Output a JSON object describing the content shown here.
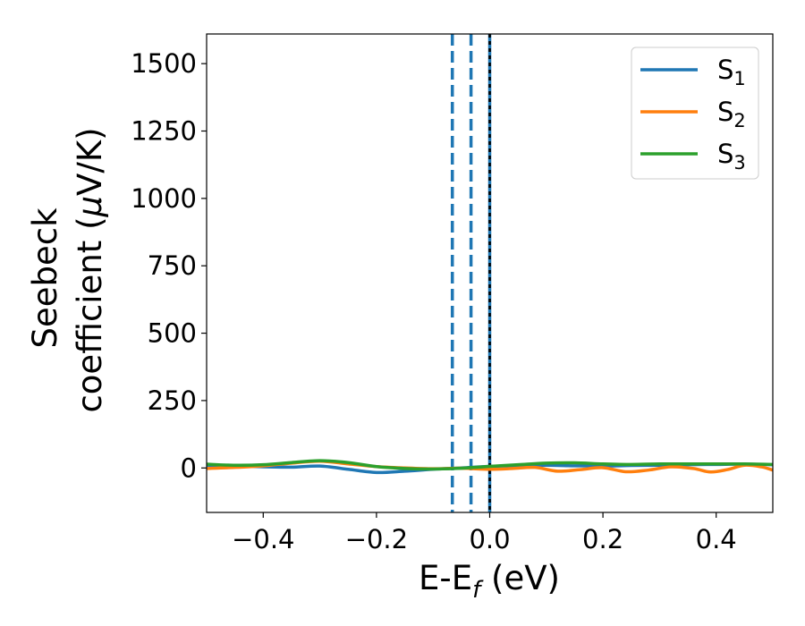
{
  "chart_data": {
    "type": "line",
    "xlabel": {
      "main": "E-E",
      "sub": "f",
      "tail": " (eV)"
    },
    "ylabel": {
      "line1": "Seebeck",
      "line2": "coefficient  (",
      "mu": "μ",
      "tail": "V/K)"
    },
    "xlim": [
      -0.5,
      0.5
    ],
    "ylim": [
      -165,
      1610
    ],
    "xticks": [
      -0.4,
      -0.2,
      0.0,
      0.2,
      0.4
    ],
    "xtick_labels": [
      "−0.4",
      "−0.2",
      "0.0",
      "0.2",
      "0.4"
    ],
    "yticks": [
      0,
      250,
      500,
      750,
      1000,
      1250,
      1500
    ],
    "ytick_labels": [
      "0",
      "250",
      "500",
      "750",
      "1000",
      "1250",
      "1500"
    ],
    "grid": false,
    "legend_position": "top-right",
    "series": [
      {
        "name": "S",
        "sub": "1",
        "color": "#1f77b4",
        "x": [
          -0.5,
          -0.45,
          -0.4,
          -0.35,
          -0.3,
          -0.25,
          -0.2,
          -0.15,
          -0.1,
          -0.05,
          0.0,
          0.05,
          0.1,
          0.15,
          0.2,
          0.25,
          0.3,
          0.35,
          0.4,
          0.45,
          0.5
        ],
        "y": [
          10,
          8,
          4,
          3,
          7,
          -5,
          -17,
          -12,
          -5,
          0,
          6,
          8,
          10,
          8,
          7,
          9,
          10,
          12,
          13,
          14,
          12
        ]
      },
      {
        "name": "S",
        "sub": "2",
        "color": "#ff7f0e",
        "x": [
          -0.5,
          -0.45,
          -0.4,
          -0.35,
          -0.3,
          -0.25,
          -0.2,
          -0.15,
          -0.1,
          -0.05,
          0.0,
          0.04,
          0.08,
          0.12,
          0.16,
          0.2,
          0.24,
          0.28,
          0.32,
          0.36,
          0.39,
          0.42,
          0.45,
          0.48,
          0.5
        ],
        "y": [
          -2,
          2,
          8,
          18,
          25,
          15,
          5,
          0,
          -3,
          -1,
          -5,
          -2,
          2,
          -12,
          -6,
          1,
          -14,
          -8,
          4,
          -2,
          -15,
          -6,
          10,
          4,
          -8
        ]
      },
      {
        "name": "S",
        "sub": "3",
        "color": "#2ca02c",
        "x": [
          -0.5,
          -0.45,
          -0.4,
          -0.35,
          -0.3,
          -0.25,
          -0.2,
          -0.15,
          -0.1,
          -0.05,
          0.0,
          0.05,
          0.1,
          0.15,
          0.2,
          0.25,
          0.3,
          0.35,
          0.4,
          0.45,
          0.5
        ],
        "y": [
          14,
          10,
          12,
          20,
          27,
          20,
          5,
          -2,
          -4,
          -1,
          6,
          12,
          18,
          19,
          15,
          13,
          15,
          15,
          15,
          15,
          13
        ]
      }
    ],
    "vlines": [
      {
        "x": -0.066,
        "style": "dashed",
        "color": "#1f77b4"
      },
      {
        "x": -0.033,
        "style": "dashed",
        "color": "#1f77b4"
      },
      {
        "x": 0.0,
        "style": "solid",
        "color": "#1f77b4"
      },
      {
        "x": 0.0,
        "style": "dotted",
        "color": "#000000"
      }
    ]
  }
}
